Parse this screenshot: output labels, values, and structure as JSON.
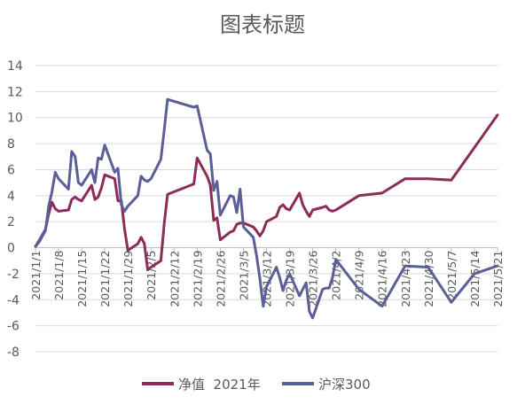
{
  "chart_data": {
    "type": "line",
    "title": "图表标题",
    "xlabel": "",
    "ylabel": "",
    "ylim": [
      -8,
      14
    ],
    "ytick_step": 2,
    "grid": "horizontal",
    "legend_position": "bottom",
    "xlim": [
      "2021/1/1",
      "2021/5/21"
    ],
    "x_tick_labels": [
      "2021/1/1",
      "2021/1/8",
      "2021/1/15",
      "2021/1/22",
      "2021/1/29",
      "2021/2/5",
      "2021/2/12",
      "2021/2/19",
      "2021/2/26",
      "2021/3/5",
      "2021/3/12",
      "2021/3/19",
      "2021/3/26",
      "2021/4/2",
      "2021/4/9",
      "2021/4/16",
      "2021/4/23",
      "2021/4/30",
      "2021/5/7",
      "2021/5/14",
      "2021/5/21"
    ],
    "series": [
      {
        "name": "净值  2021年",
        "color": "#8b2c5a",
        "x": [
          "2021/1/1",
          "2021/1/2",
          "2021/1/4",
          "2021/1/5",
          "2021/1/6",
          "2021/1/7",
          "2021/1/8",
          "2021/1/11",
          "2021/1/12",
          "2021/1/13",
          "2021/1/14",
          "2021/1/15",
          "2021/1/18",
          "2021/1/19",
          "2021/1/20",
          "2021/1/21",
          "2021/1/22",
          "2021/1/25",
          "2021/1/26",
          "2021/1/27",
          "2021/1/28",
          "2021/1/29",
          "2021/2/1",
          "2021/2/2",
          "2021/2/3",
          "2021/2/4",
          "2021/2/5",
          "2021/2/8",
          "2021/2/9",
          "2021/2/10",
          "2021/2/18",
          "2021/2/19",
          "2021/2/22",
          "2021/2/23",
          "2021/2/24",
          "2021/2/25",
          "2021/2/26",
          "2021/3/1",
          "2021/3/2",
          "2021/3/3",
          "2021/3/4",
          "2021/3/5",
          "2021/3/8",
          "2021/3/9",
          "2021/3/10",
          "2021/3/11",
          "2021/3/12",
          "2021/3/15",
          "2021/3/16",
          "2021/3/17",
          "2021/3/18",
          "2021/3/19",
          "2021/3/22",
          "2021/3/23",
          "2021/3/24",
          "2021/3/25",
          "2021/3/26",
          "2021/3/29",
          "2021/3/30",
          "2021/3/31",
          "2021/4/1",
          "2021/4/2",
          "2021/4/9",
          "2021/4/16",
          "2021/4/23",
          "2021/4/30",
          "2021/5/7",
          "2021/5/14",
          "2021/5/21"
        ],
        "values": [
          0.1,
          0.5,
          1.4,
          2.6,
          3.5,
          3.0,
          2.8,
          2.9,
          3.7,
          3.9,
          3.7,
          3.6,
          4.8,
          3.7,
          3.9,
          4.6,
          5.6,
          5.3,
          3.6,
          3.6,
          1.4,
          -0.2,
          0.3,
          0.8,
          0.3,
          -1.7,
          -1.5,
          -1.0,
          1.8,
          4.1,
          4.9,
          6.9,
          5.5,
          4.8,
          2.1,
          2.3,
          0.6,
          1.2,
          1.3,
          1.8,
          1.9,
          1.9,
          1.6,
          1.3,
          0.9,
          1.3,
          2.0,
          2.4,
          3.1,
          3.3,
          3.0,
          2.9,
          4.2,
          3.3,
          2.8,
          2.4,
          2.9,
          3.1,
          3.2,
          2.9,
          2.8,
          2.9,
          4.0,
          4.2,
          5.3,
          5.3,
          5.2,
          7.7,
          10.2
        ]
      },
      {
        "name": "沪深300",
        "color": "#5b5f97",
        "x": [
          "2021/1/1",
          "2021/1/2",
          "2021/1/4",
          "2021/1/5",
          "2021/1/6",
          "2021/1/7",
          "2021/1/8",
          "2021/1/11",
          "2021/1/12",
          "2021/1/13",
          "2021/1/14",
          "2021/1/15",
          "2021/1/18",
          "2021/1/19",
          "2021/1/20",
          "2021/1/21",
          "2021/1/22",
          "2021/1/25",
          "2021/1/26",
          "2021/1/27",
          "2021/1/28",
          "2021/1/29",
          "2021/2/1",
          "2021/2/2",
          "2021/2/3",
          "2021/2/4",
          "2021/2/5",
          "2021/2/8",
          "2021/2/9",
          "2021/2/10",
          "2021/2/18",
          "2021/2/19",
          "2021/2/22",
          "2021/2/23",
          "2021/2/24",
          "2021/2/25",
          "2021/2/26",
          "2021/3/1",
          "2021/3/2",
          "2021/3/3",
          "2021/3/4",
          "2021/3/5",
          "2021/3/8",
          "2021/3/9",
          "2021/3/10",
          "2021/3/11",
          "2021/3/12",
          "2021/3/15",
          "2021/3/16",
          "2021/3/17",
          "2021/3/18",
          "2021/3/19",
          "2021/3/22",
          "2021/3/23",
          "2021/3/24",
          "2021/3/25",
          "2021/3/26",
          "2021/3/29",
          "2021/3/30",
          "2021/3/31",
          "2021/4/1",
          "2021/4/2",
          "2021/4/9",
          "2021/4/16",
          "2021/4/23",
          "2021/4/30",
          "2021/5/7",
          "2021/5/14",
          "2021/5/21"
        ],
        "values": [
          0.1,
          0.4,
          1.3,
          3.2,
          4.3,
          5.8,
          5.3,
          4.5,
          7.4,
          7.0,
          5.0,
          4.8,
          6.0,
          5.0,
          6.9,
          6.8,
          7.9,
          5.8,
          6.1,
          3.3,
          2.8,
          3.2,
          4.0,
          5.5,
          5.2,
          5.1,
          5.3,
          6.8,
          9.0,
          11.4,
          10.8,
          10.9,
          7.5,
          7.2,
          4.4,
          5.1,
          2.5,
          4.0,
          3.9,
          2.7,
          4.5,
          1.6,
          0.8,
          -0.6,
          -2.4,
          -4.5,
          -3.0,
          -1.5,
          -2.3,
          -3.3,
          -2.5,
          -2.0,
          -3.7,
          -3.2,
          -2.7,
          -4.9,
          -5.4,
          -3.2,
          -3.1,
          -3.1,
          -2.3,
          -0.9,
          -3.2,
          -4.5,
          -1.4,
          -1.5,
          -4.2,
          -2.0,
          -1.4
        ]
      }
    ]
  }
}
